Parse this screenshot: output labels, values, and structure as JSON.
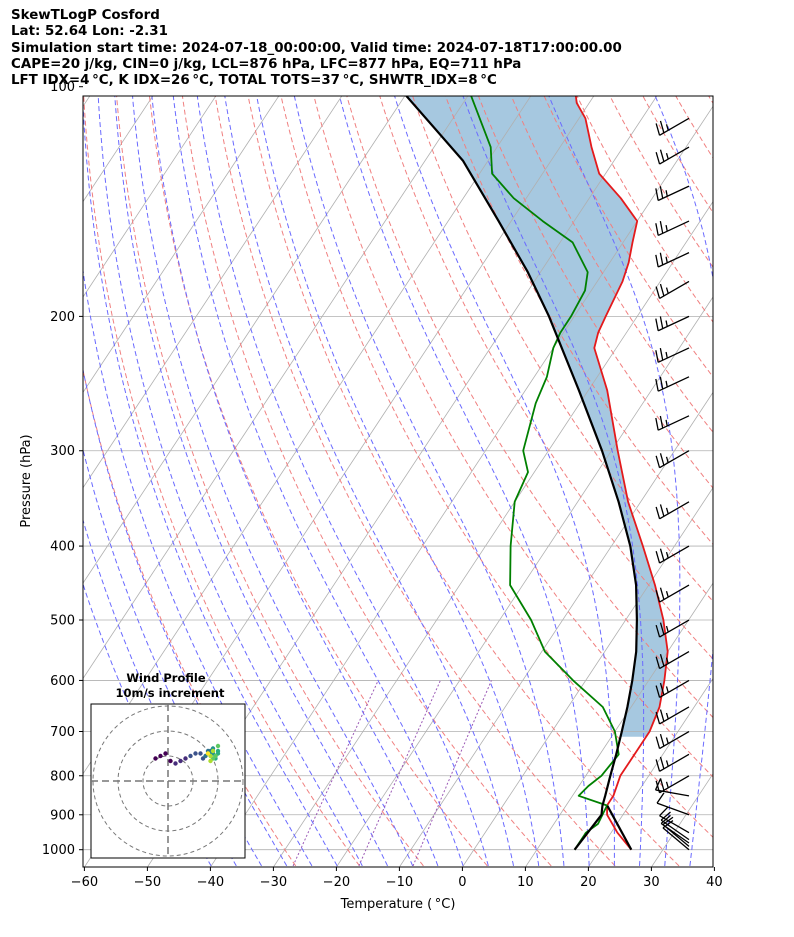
{
  "header": {
    "line1": "SkewTLogP Cosford",
    "line2": "Lat: 52.64   Lon: -2.31",
    "line3": "Simulation start time: 2024-07-18_00:00:00, Valid time: 2024-07-18T17:00:00.00",
    "line4": "CAPE=20 j/kg, CIN=0 j/kg, LCL=876 hPa, LFC=877 hPa, EQ=711 hPa",
    "line5": "LFT IDX=4 °C, K IDX=26 °C, TOTAL TOTS=37 °C, SHWTR_IDX=8 °C"
  },
  "chart_data": [
    {
      "type": "line",
      "chart_kind": "skew-T log-P",
      "xlabel": "Temperature ( °C)",
      "ylabel": "Pressure (hPa)",
      "xlim": [
        -60,
        40
      ],
      "ylim": [
        1050,
        100
      ],
      "y_scale": "log",
      "x_ticks": [
        -60,
        -50,
        -40,
        -30,
        -20,
        -10,
        0,
        10,
        20,
        30,
        40
      ],
      "x_tick_labels": [
        "−60",
        "−50",
        "−40",
        "−30",
        "−20",
        "−10",
        "0",
        "10",
        "20",
        "30",
        "40"
      ],
      "y_ticks": [
        1000,
        900,
        800,
        700,
        600,
        500,
        400,
        300,
        200,
        100
      ],
      "y_tick_labels": [
        "1000",
        "900",
        "800",
        "700",
        "600",
        "500",
        "400",
        "300",
        "200",
        "100"
      ],
      "grid": true,
      "colors": {
        "temperature": "#e41a1c",
        "dewpoint": "#008000",
        "parcel": "#000000",
        "cape_fill": "#a6c8e0",
        "isotherm": "#b0b0b0",
        "dry_adiabat": "#f08080",
        "moist_adiabat": "#6a6aff",
        "mixing_ratio": "#9b59b6"
      },
      "series": [
        {
          "key": "temperature",
          "pressure": [
            1000,
            950,
            900,
            875,
            850,
            800,
            750,
            700,
            650,
            600,
            550,
            500,
            450,
            400,
            350,
            300,
            250,
            220,
            210,
            200,
            180,
            170,
            160,
            150,
            140,
            130,
            120,
            110,
            105,
            100
          ],
          "temperature": [
            25,
            21,
            17.5,
            16.5,
            16.5,
            15.5,
            15.5,
            15.5,
            14.5,
            12.5,
            10,
            6,
            1,
            -5,
            -12,
            -19,
            -27,
            -33.5,
            -34.5,
            -35,
            -36,
            -37,
            -38.5,
            -40,
            -45,
            -51,
            -55,
            -59,
            -62,
            -64
          ]
        },
        {
          "key": "dewpoint",
          "pressure": [
            1000,
            950,
            925,
            875,
            850,
            825,
            800,
            750,
            700,
            650,
            600,
            550,
            500,
            450,
            400,
            350,
            320,
            300,
            260,
            240,
            220,
            210,
            200,
            185,
            175,
            160,
            150,
            140,
            130,
            120,
            100
          ],
          "temperature": [
            16,
            16,
            17,
            16.5,
            11,
            11.5,
            12.5,
            13,
            10,
            5.5,
            -2,
            -9.5,
            -15,
            -22,
            -26,
            -30,
            -31,
            -34,
            -37,
            -38,
            -40,
            -40.5,
            -40.5,
            -41,
            -42.5,
            -48,
            -55,
            -62,
            -68,
            -71,
            -81
          ]
        },
        {
          "key": "parcel",
          "pressure": [
            1000,
            900,
            876,
            850,
            800,
            750,
            700,
            650,
            600,
            550,
            500,
            450,
            400,
            350,
            300,
            250,
            200,
            175,
            150,
            125,
            100
          ],
          "temperature": [
            16,
            16.6,
            15.8,
            15.2,
            13.9,
            12.6,
            11.1,
            9.4,
            7.4,
            5,
            1.8,
            -2,
            -7,
            -13.5,
            -21.5,
            -31.5,
            -44,
            -52,
            -62,
            -74,
            -92
          ]
        },
        {
          "key": "parcel-surface",
          "pressure": [
            1000,
            876
          ],
          "temperature": [
            25,
            16.6
          ]
        }
      ],
      "wind_barbs": {
        "pressure": [
          1000,
          990,
          980,
          970,
          950,
          900,
          850,
          800,
          750,
          700,
          650,
          600,
          550,
          500,
          450,
          400,
          350,
          300,
          270,
          240,
          220,
          200,
          180,
          165,
          150,
          135,
          120,
          110
        ],
        "speed_kt": [
          10,
          10,
          10,
          10,
          10,
          10,
          10,
          25,
          25,
          25,
          25,
          25,
          25,
          25,
          25,
          25,
          25,
          25,
          25,
          25,
          25,
          25,
          25,
          25,
          25,
          25,
          25,
          25
        ],
        "direction_deg": [
          310,
          310,
          305,
          305,
          300,
          290,
          280,
          240,
          240,
          240,
          240,
          240,
          240,
          240,
          240,
          240,
          240,
          240,
          245,
          245,
          245,
          245,
          240,
          245,
          245,
          245,
          240,
          240
        ]
      }
    },
    {
      "type": "scatter",
      "chart_kind": "hodograph inset",
      "title": "Wind Profile",
      "subtitle": "10m/s increment",
      "rings_ms": [
        10,
        20,
        30
      ],
      "u": [
        -5,
        -3,
        -1,
        1,
        3,
        5,
        7,
        9,
        11,
        13,
        14,
        15,
        16,
        17,
        17,
        18,
        18,
        19,
        19,
        20,
        20,
        20,
        19,
        18,
        18,
        17,
        17,
        16
      ],
      "v": [
        9,
        10,
        11,
        8,
        7,
        8,
        9,
        10,
        11,
        11,
        9,
        10,
        12,
        12,
        11,
        13,
        11,
        10,
        9,
        11,
        12,
        14,
        10,
        9,
        12,
        8,
        10,
        11
      ],
      "colormap": "viridis"
    }
  ]
}
